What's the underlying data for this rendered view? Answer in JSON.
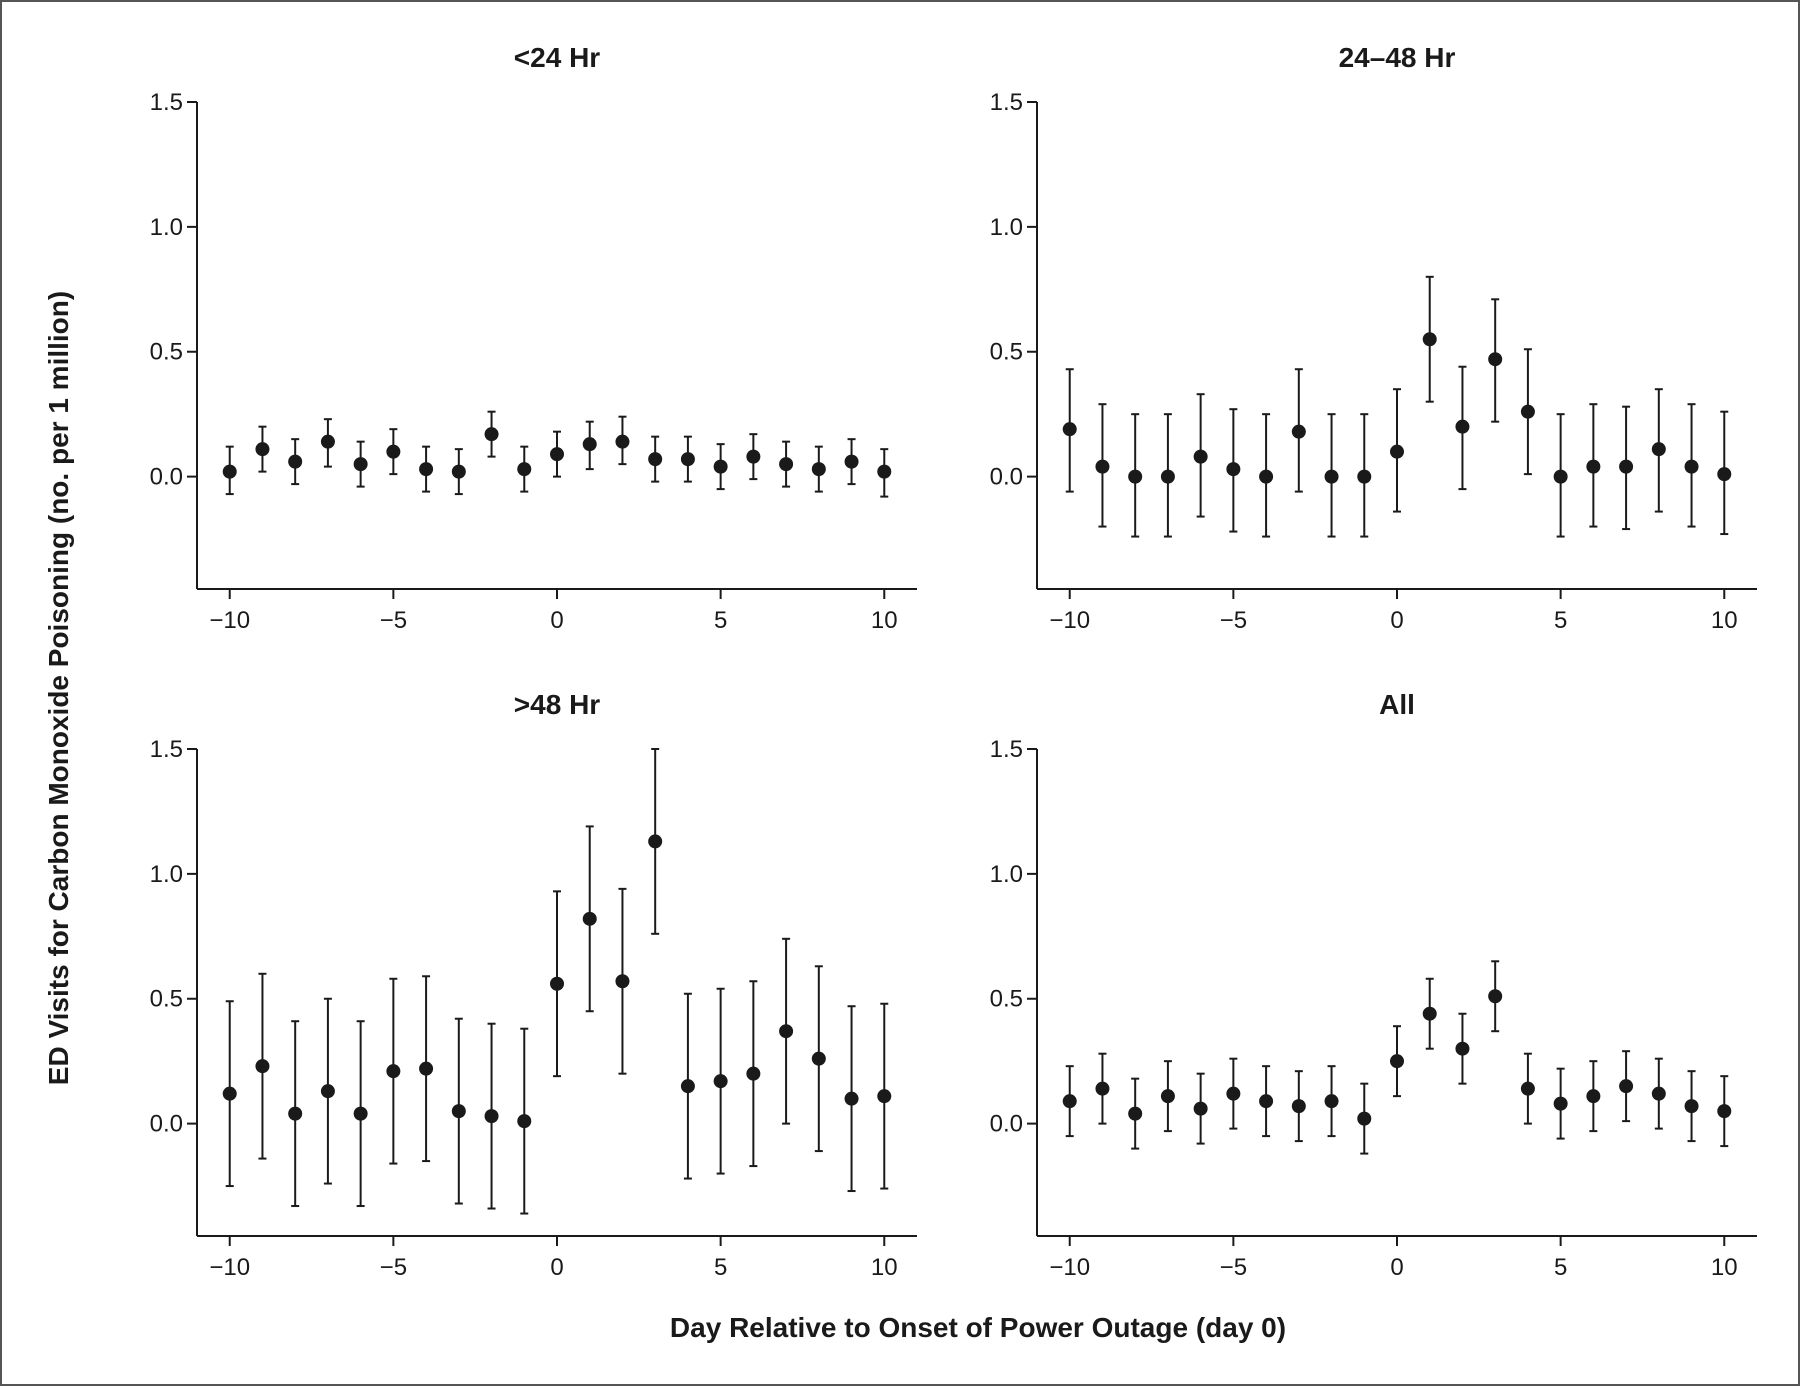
{
  "figure": {
    "ylabel": "ED Visits for Carbon Monoxide Poisoning (no. per 1 million)",
    "xlabel": "Day Relative to Onset of Power Outage (day 0)",
    "border_color": "#555555",
    "mark_color": "#1a1a1a"
  },
  "chart_data": [
    {
      "type": "scatter",
      "title": "<24 Hr",
      "x": [
        -10,
        -9,
        -8,
        -7,
        -6,
        -5,
        -4,
        -3,
        -2,
        -1,
        0,
        1,
        2,
        3,
        4,
        5,
        6,
        7,
        8,
        9,
        10
      ],
      "y": [
        0.02,
        0.11,
        0.06,
        0.14,
        0.05,
        0.1,
        0.03,
        0.02,
        0.17,
        0.03,
        0.09,
        0.13,
        0.14,
        0.07,
        0.07,
        0.04,
        0.08,
        0.05,
        0.03,
        0.06,
        0.02
      ],
      "y_lower": [
        -0.07,
        0.02,
        -0.03,
        0.04,
        -0.04,
        0.01,
        -0.06,
        -0.07,
        0.08,
        -0.06,
        0.0,
        0.03,
        0.05,
        -0.02,
        -0.02,
        -0.05,
        -0.01,
        -0.04,
        -0.06,
        -0.03,
        -0.08
      ],
      "y_upper": [
        0.12,
        0.2,
        0.15,
        0.23,
        0.14,
        0.19,
        0.12,
        0.11,
        0.26,
        0.12,
        0.18,
        0.22,
        0.24,
        0.16,
        0.16,
        0.13,
        0.17,
        0.14,
        0.12,
        0.15,
        0.11
      ],
      "xlim": [
        -11,
        11
      ],
      "ylim": [
        -0.45,
        1.5
      ],
      "xticks": [
        -10,
        -5,
        0,
        5,
        10
      ],
      "xtick_labels": [
        "−10",
        "−5",
        "0",
        "5",
        "10"
      ],
      "yticks": [
        0,
        0.5,
        1.0,
        1.5
      ],
      "ytick_labels": [
        "0.0",
        "0.5",
        "1.0",
        "1.5"
      ],
      "grid": false,
      "legend": "none"
    },
    {
      "type": "scatter",
      "title": "24–48 Hr",
      "x": [
        -10,
        -9,
        -8,
        -7,
        -6,
        -5,
        -4,
        -3,
        -2,
        -1,
        0,
        1,
        2,
        3,
        4,
        5,
        6,
        7,
        8,
        9,
        10
      ],
      "y": [
        0.19,
        0.04,
        0.0,
        0.0,
        0.08,
        0.03,
        0.0,
        0.18,
        0.0,
        0.0,
        0.1,
        0.55,
        0.2,
        0.47,
        0.26,
        0.0,
        0.04,
        0.04,
        0.11,
        0.04,
        0.01
      ],
      "y_lower": [
        -0.06,
        -0.2,
        -0.24,
        -0.24,
        -0.16,
        -0.22,
        -0.24,
        -0.06,
        -0.24,
        -0.24,
        -0.14,
        0.3,
        -0.05,
        0.22,
        0.01,
        -0.24,
        -0.2,
        -0.21,
        -0.14,
        -0.2,
        -0.23
      ],
      "y_upper": [
        0.43,
        0.29,
        0.25,
        0.25,
        0.33,
        0.27,
        0.25,
        0.43,
        0.25,
        0.25,
        0.35,
        0.8,
        0.44,
        0.71,
        0.51,
        0.25,
        0.29,
        0.28,
        0.35,
        0.29,
        0.26
      ],
      "xlim": [
        -11,
        11
      ],
      "ylim": [
        -0.45,
        1.5
      ],
      "xticks": [
        -10,
        -5,
        0,
        5,
        10
      ],
      "xtick_labels": [
        "−10",
        "−5",
        "0",
        "5",
        "10"
      ],
      "yticks": [
        0,
        0.5,
        1.0,
        1.5
      ],
      "ytick_labels": [
        "0.0",
        "0.5",
        "1.0",
        "1.5"
      ],
      "grid": false,
      "legend": "none"
    },
    {
      "type": "scatter",
      "title": ">48 Hr",
      "x": [
        -10,
        -9,
        -8,
        -7,
        -6,
        -5,
        -4,
        -3,
        -2,
        -1,
        0,
        1,
        2,
        3,
        4,
        5,
        6,
        7,
        8,
        9,
        10
      ],
      "y": [
        0.12,
        0.23,
        0.04,
        0.13,
        0.04,
        0.21,
        0.22,
        0.05,
        0.03,
        0.01,
        0.56,
        0.82,
        0.57,
        1.13,
        0.15,
        0.17,
        0.2,
        0.37,
        0.26,
        0.1,
        0.11
      ],
      "y_lower": [
        -0.25,
        -0.14,
        -0.33,
        -0.24,
        -0.33,
        -0.16,
        -0.15,
        -0.32,
        -0.34,
        -0.36,
        0.19,
        0.45,
        0.2,
        0.76,
        -0.22,
        -0.2,
        -0.17,
        0.0,
        -0.11,
        -0.27,
        -0.26
      ],
      "y_upper": [
        0.49,
        0.6,
        0.41,
        0.5,
        0.41,
        0.58,
        0.59,
        0.42,
        0.4,
        0.38,
        0.93,
        1.19,
        0.94,
        1.5,
        0.52,
        0.54,
        0.57,
        0.74,
        0.63,
        0.47,
        0.48
      ],
      "xlim": [
        -11,
        11
      ],
      "ylim": [
        -0.45,
        1.5
      ],
      "xticks": [
        -10,
        -5,
        0,
        5,
        10
      ],
      "xtick_labels": [
        "−10",
        "−5",
        "0",
        "5",
        "10"
      ],
      "yticks": [
        0,
        0.5,
        1.0,
        1.5
      ],
      "ytick_labels": [
        "0.0",
        "0.5",
        "1.0",
        "1.5"
      ],
      "grid": false,
      "legend": "none"
    },
    {
      "type": "scatter",
      "title": "All",
      "x": [
        -10,
        -9,
        -8,
        -7,
        -6,
        -5,
        -4,
        -3,
        -2,
        -1,
        0,
        1,
        2,
        3,
        4,
        5,
        6,
        7,
        8,
        9,
        10
      ],
      "y": [
        0.09,
        0.14,
        0.04,
        0.11,
        0.06,
        0.12,
        0.09,
        0.07,
        0.09,
        0.02,
        0.25,
        0.44,
        0.3,
        0.51,
        0.14,
        0.08,
        0.11,
        0.15,
        0.12,
        0.07,
        0.05
      ],
      "y_lower": [
        -0.05,
        0.0,
        -0.1,
        -0.03,
        -0.08,
        -0.02,
        -0.05,
        -0.07,
        -0.05,
        -0.12,
        0.11,
        0.3,
        0.16,
        0.37,
        0.0,
        -0.06,
        -0.03,
        0.01,
        -0.02,
        -0.07,
        -0.09
      ],
      "y_upper": [
        0.23,
        0.28,
        0.18,
        0.25,
        0.2,
        0.26,
        0.23,
        0.21,
        0.23,
        0.16,
        0.39,
        0.58,
        0.44,
        0.65,
        0.28,
        0.22,
        0.25,
        0.29,
        0.26,
        0.21,
        0.19
      ],
      "xlim": [
        -11,
        11
      ],
      "ylim": [
        -0.45,
        1.5
      ],
      "xticks": [
        -10,
        -5,
        0,
        5,
        10
      ],
      "xtick_labels": [
        "−10",
        "−5",
        "0",
        "5",
        "10"
      ],
      "yticks": [
        0,
        0.5,
        1.0,
        1.5
      ],
      "ytick_labels": [
        "0.0",
        "0.5",
        "1.0",
        "1.5"
      ],
      "grid": false,
      "legend": "none"
    }
  ]
}
